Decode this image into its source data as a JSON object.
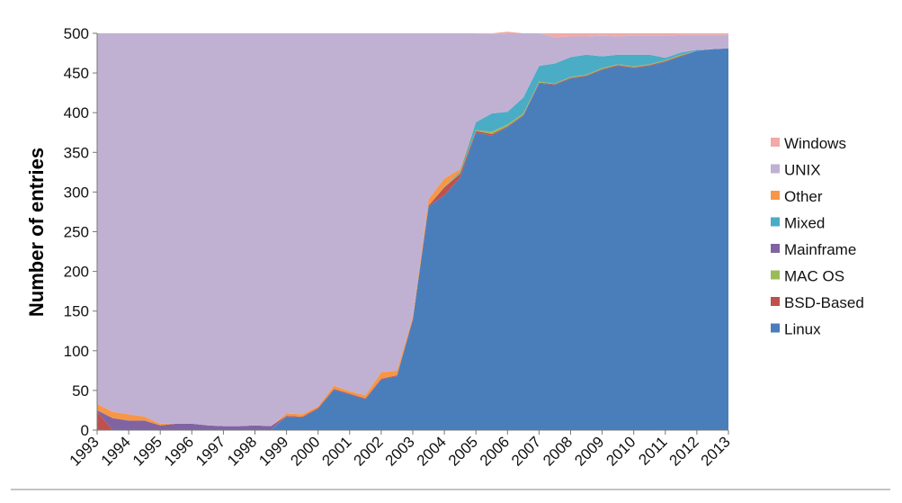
{
  "chart_data": {
    "type": "area",
    "stacked": true,
    "title": "",
    "xlabel": "",
    "ylabel": "Number of entries",
    "ylim": [
      0,
      500
    ],
    "yticks": [
      0,
      50,
      100,
      150,
      200,
      250,
      300,
      350,
      400,
      450,
      500
    ],
    "grid": false,
    "legend_position": "right",
    "xlim": [
      1993,
      2013
    ],
    "xticks": [
      "1993",
      "1994",
      "1995",
      "1996",
      "1997",
      "1998",
      "1999",
      "2000",
      "2001",
      "2002",
      "2003",
      "2004",
      "2005",
      "2006",
      "2007",
      "2008",
      "2009",
      "2010",
      "2011",
      "2012",
      "2013"
    ],
    "x": [
      1993.0,
      1993.5,
      1994.0,
      1994.5,
      1995.0,
      1995.5,
      1996.0,
      1996.5,
      1997.0,
      1997.5,
      1998.0,
      1998.5,
      1999.0,
      1999.5,
      2000.0,
      2000.5,
      2001.0,
      2001.5,
      2002.0,
      2002.5,
      2003.0,
      2003.5,
      2004.0,
      2004.5,
      2005.0,
      2005.5,
      2006.0,
      2006.5,
      2007.0,
      2007.5,
      2008.0,
      2008.5,
      2009.0,
      2009.5,
      2010.0,
      2010.5,
      2011.0,
      2011.5,
      2012.0,
      2012.5,
      2013.0
    ],
    "series": [
      {
        "name": "Linux",
        "color": "#4a7ebb",
        "values": [
          0,
          0,
          0,
          0,
          0,
          0,
          0,
          0,
          0,
          0,
          0,
          0,
          17,
          16,
          27,
          51,
          45,
          39,
          64,
          68,
          139,
          282,
          296,
          318,
          375,
          371,
          382,
          396,
          437,
          435,
          443,
          446,
          454,
          459,
          456,
          459,
          464,
          471,
          478,
          480,
          481
        ]
      },
      {
        "name": "BSD-Based",
        "color": "#c0504d",
        "values": [
          23,
          0,
          0,
          0,
          0,
          0,
          0,
          0,
          0,
          0,
          0,
          0,
          1,
          1,
          1,
          1,
          1,
          1,
          1,
          1,
          1,
          1,
          10,
          5,
          2,
          2,
          1,
          1,
          1,
          1,
          1,
          1,
          1,
          1,
          1,
          1,
          1,
          1,
          0,
          0,
          0
        ]
      },
      {
        "name": "MAC OS",
        "color": "#9bbb59",
        "values": [
          0,
          0,
          0,
          0,
          0,
          0,
          0,
          0,
          0,
          0,
          0,
          0,
          0,
          0,
          0,
          0,
          0,
          0,
          0,
          0,
          0,
          0,
          1,
          1,
          1,
          3,
          2,
          2,
          1,
          1,
          1,
          1,
          1,
          1,
          1,
          1,
          1,
          1,
          0,
          0,
          0
        ]
      },
      {
        "name": "Mainframe",
        "color": "#8064a2",
        "values": [
          2,
          15,
          12,
          12,
          6,
          8,
          8,
          6,
          5,
          5,
          6,
          5,
          0,
          0,
          0,
          0,
          0,
          0,
          0,
          0,
          0,
          0,
          0,
          0,
          0,
          0,
          0,
          0,
          0,
          0,
          0,
          0,
          0,
          0,
          0,
          0,
          0,
          0,
          0,
          0,
          0
        ]
      },
      {
        "name": "Mixed",
        "color": "#4bacc6",
        "values": [
          0,
          0,
          0,
          0,
          0,
          0,
          0,
          0,
          0,
          0,
          0,
          0,
          0,
          0,
          0,
          0,
          0,
          0,
          0,
          0,
          0,
          0,
          0,
          2,
          10,
          23,
          16,
          20,
          20,
          25,
          25,
          25,
          15,
          12,
          15,
          12,
          3,
          3,
          1,
          0,
          0
        ]
      },
      {
        "name": "Other",
        "color": "#f79646",
        "values": [
          8,
          8,
          8,
          5,
          2,
          0,
          0,
          0,
          0,
          0,
          0,
          0,
          3,
          3,
          2,
          4,
          3,
          4,
          8,
          6,
          3,
          8,
          10,
          3,
          0,
          0,
          0,
          0,
          0,
          0,
          0,
          0,
          0,
          0,
          0,
          0,
          0,
          0,
          0,
          0,
          0
        ]
      },
      {
        "name": "UNIX",
        "color": "#c0b1d3",
        "values": [
          467,
          477,
          480,
          483,
          492,
          492,
          492,
          494,
          495,
          495,
          494,
          495,
          479,
          480,
          470,
          444,
          451,
          456,
          427,
          425,
          357,
          209,
          183,
          171,
          112,
          100,
          99,
          81,
          41,
          33,
          26,
          23,
          26,
          23,
          24,
          24,
          28,
          22,
          19,
          18,
          17
        ]
      },
      {
        "name": "Windows",
        "color": "#f2a9a8",
        "values": [
          0,
          0,
          0,
          0,
          0,
          0,
          0,
          0,
          0,
          0,
          0,
          0,
          0,
          0,
          0,
          0,
          0,
          0,
          0,
          0,
          0,
          0,
          0,
          0,
          0,
          1,
          2,
          0,
          0,
          5,
          4,
          4,
          3,
          4,
          3,
          3,
          3,
          2,
          2,
          2,
          2
        ]
      }
    ]
  }
}
